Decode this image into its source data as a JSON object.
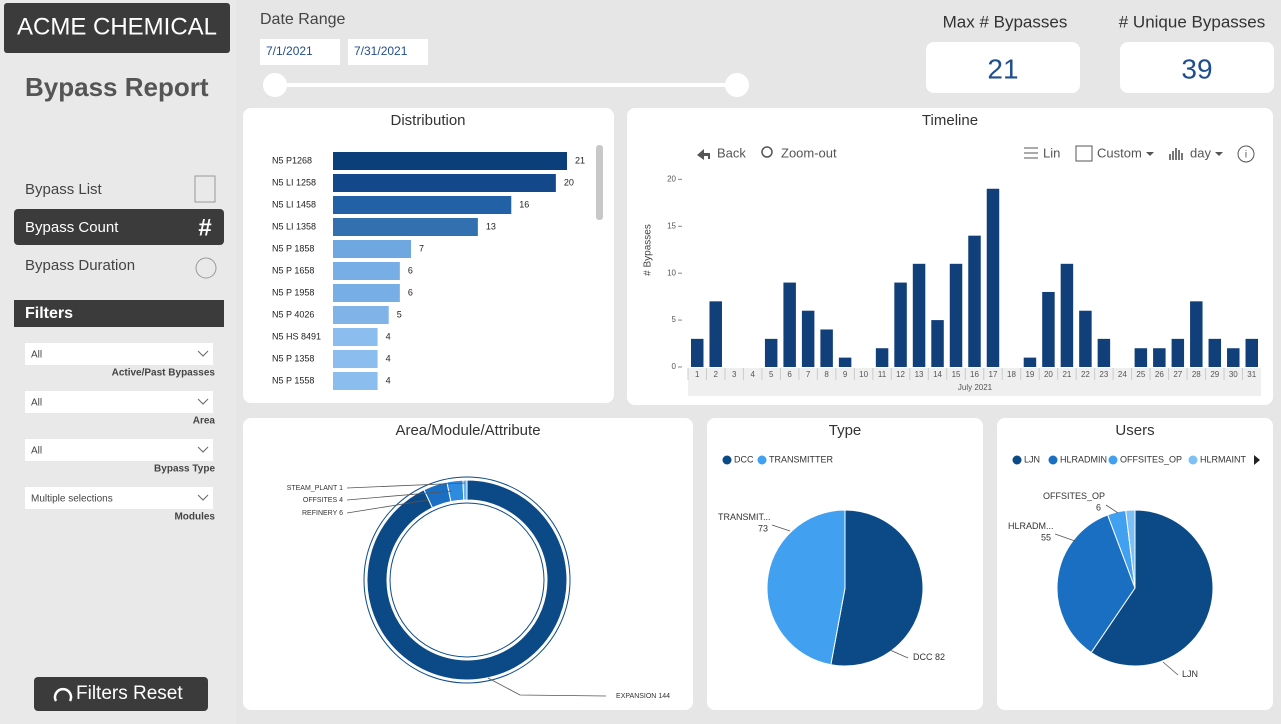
{
  "header": {
    "brand": "ACME CHEMICAL",
    "title": "Bypass Report"
  },
  "nav": [
    "Bypass List",
    "Bypass Count",
    "Bypass Duration"
  ],
  "filters": {
    "title": "Filters",
    "items": [
      {
        "value": "All",
        "label": "Active/Past Bypasses"
      },
      {
        "value": "All",
        "label": "Area"
      },
      {
        "value": "All",
        "label": "Bypass Type"
      },
      {
        "value": "Multiple selections",
        "label": "Modules"
      }
    ],
    "reset": "Filters Reset"
  },
  "date_range": {
    "label": "Date Range",
    "start": "7/1/2021",
    "end": "7/31/2021"
  },
  "cards": [
    {
      "label": "Max # Bypasses",
      "value": 21
    },
    {
      "label": "# Unique Bypasses",
      "value": 39
    }
  ],
  "chart_data": [
    {
      "type": "hbar",
      "title": "Distribution",
      "categories": [
        "N5 P1268",
        "N5 LI 1258",
        "N5 LI 1458",
        "N5 LI 1358",
        "N5 P 1858",
        "N5 P 1658",
        "N5 P 1958",
        "N5 P 4026",
        "N5 HS 8491",
        "N5 P 1358",
        "N5 P 1558"
      ],
      "values": [
        21,
        20,
        16,
        13,
        7,
        6,
        6,
        5,
        4,
        4,
        4
      ],
      "colors": [
        "#0b3f7a",
        "#13498a",
        "#2361a6",
        "#3370b0",
        "#6fa7e1",
        "#78aee6",
        "#78aee6",
        "#80b4e9",
        "#8bbdee",
        "#8bbdee",
        "#8bbdee"
      ]
    },
    {
      "type": "bar",
      "title": "Timeline",
      "toolbar": [
        "Back",
        "Zoom-out",
        "Lin",
        "Custom",
        "day"
      ],
      "ylabel": "# Bypasses",
      "xlabel": "July 2021",
      "categories": [
        "1",
        "2",
        "3",
        "4",
        "5",
        "6",
        "7",
        "8",
        "9",
        "10",
        "11",
        "12",
        "13",
        "14",
        "15",
        "16",
        "17",
        "18",
        "19",
        "20",
        "21",
        "22",
        "23",
        "24",
        "25",
        "26",
        "27",
        "28",
        "29",
        "30",
        "31"
      ],
      "values": [
        3,
        7,
        0,
        0,
        3,
        9,
        6,
        4,
        1,
        0,
        2,
        9,
        11,
        5,
        11,
        14,
        19,
        0,
        1,
        8,
        11,
        6,
        3,
        0,
        2,
        2,
        3,
        7,
        3,
        2,
        3
      ],
      "color": "#103f7a",
      "ylim": [
        0,
        21
      ],
      "yticks": [
        0,
        5,
        10,
        15,
        20
      ]
    },
    {
      "type": "donut",
      "title": "Area/Module/Attribute",
      "categories": [
        "EXPANSION",
        "REFINERY",
        "OFFSITES",
        "STEAM_PLANT"
      ],
      "values": [
        144,
        6,
        4,
        1
      ],
      "colors": [
        "#0c4a87",
        "#1a6fc2",
        "#2f8be0",
        "#6ab0f0"
      ]
    },
    {
      "type": "pie",
      "title": "Type",
      "categories": [
        "DCC",
        "TRANSMITTER"
      ],
      "slice_labels": [
        "DCC",
        "TRANSMIT..."
      ],
      "values": [
        82,
        73
      ],
      "colors": [
        "#0c4a87",
        "#41a0f0"
      ]
    },
    {
      "type": "pie",
      "title": "Users",
      "categories": [
        "LJN",
        "HLRADMIN",
        "OFFSITES_OP",
        "HLRMAINT"
      ],
      "slice_labels": [
        "LJN",
        "HLRADM...",
        "OFFSITES_OP",
        null
      ],
      "values": [
        94,
        55,
        6,
        3
      ],
      "colors": [
        "#0c4a87",
        "#1a6fc2",
        "#41a0f0",
        "#7cc0f5"
      ]
    }
  ]
}
